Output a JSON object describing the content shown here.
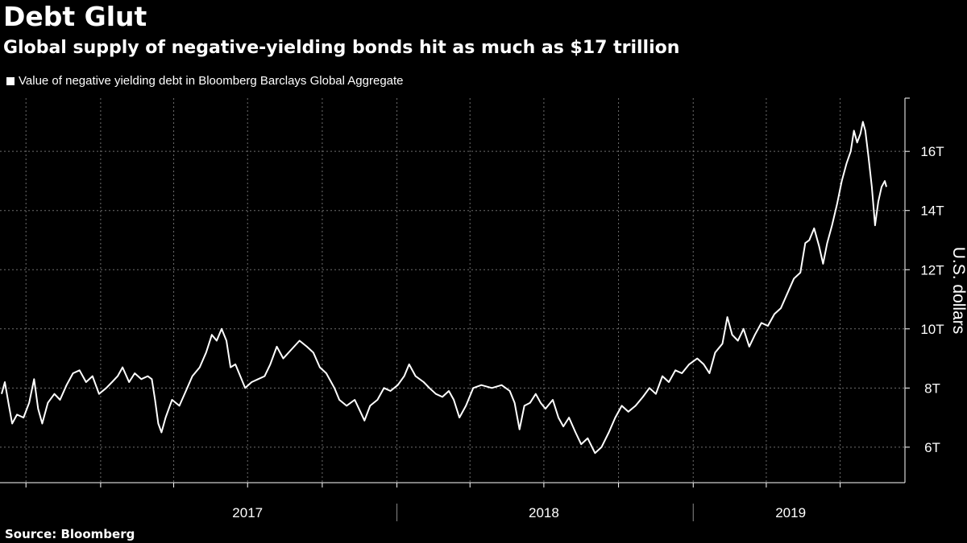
{
  "header": {
    "title": "Debt Glut",
    "subtitle": "Global supply of negative-yielding bonds hit as much as $17 trillion"
  },
  "legend": {
    "label": "Value of negative yielding debt in Bloomberg Barclays Global Aggregate"
  },
  "footer": {
    "source": "Source: Bloomberg"
  },
  "colors": {
    "background": "#000000",
    "line": "#ffffff",
    "grid": "#6e6e6e",
    "text": "#ffffff"
  },
  "chart_data": {
    "type": "line",
    "title": "Debt Glut",
    "subtitle": "Global supply of negative-yielding bonds hit as much as $17 trillion",
    "ylabel": "U.S. dollars",
    "xlabel": "",
    "y_unit": "trillion USD",
    "ylim": [
      4.8,
      17.8
    ],
    "xlim": [
      "2016-09-01",
      "2019-08-27"
    ],
    "grid": true,
    "legend_position": "top-left",
    "y_ticks": [
      {
        "value": 6,
        "label": "6T"
      },
      {
        "value": 8,
        "label": "8T"
      },
      {
        "value": 10,
        "label": "10T"
      },
      {
        "value": 12,
        "label": "12T"
      },
      {
        "value": 14,
        "label": "14T"
      },
      {
        "value": 16,
        "label": "16T"
      }
    ],
    "x_tick_labels": [
      {
        "date": "2017-07-01",
        "label": "2017"
      },
      {
        "date": "2018-07-01",
        "label": "2018"
      },
      {
        "date": "2019-05-01",
        "label": "2019"
      }
    ],
    "x_year_dividers": [
      "2018-01-01",
      "2019-01-01"
    ],
    "x_minor_ticks": [
      "2016-10-01",
      "2017-01-01",
      "2017-04-01",
      "2017-07-01",
      "2017-10-01",
      "2018-01-01",
      "2018-04-01",
      "2018-07-01",
      "2018-10-01",
      "2019-01-01",
      "2019-04-01",
      "2019-07-01"
    ],
    "series": [
      {
        "name": "Value of negative yielding debt in Bloomberg Barclays Global Aggregate",
        "points": [
          [
            "2016-09-01",
            7.8
          ],
          [
            "2016-09-05",
            8.2
          ],
          [
            "2016-09-10",
            7.4
          ],
          [
            "2016-09-14",
            6.8
          ],
          [
            "2016-09-20",
            7.1
          ],
          [
            "2016-09-28",
            7.0
          ],
          [
            "2016-10-05",
            7.5
          ],
          [
            "2016-10-11",
            8.3
          ],
          [
            "2016-10-16",
            7.3
          ],
          [
            "2016-10-21",
            6.8
          ],
          [
            "2016-10-28",
            7.5
          ],
          [
            "2016-11-05",
            7.8
          ],
          [
            "2016-11-12",
            7.6
          ],
          [
            "2016-11-20",
            8.1
          ],
          [
            "2016-11-28",
            8.5
          ],
          [
            "2016-12-06",
            8.6
          ],
          [
            "2016-12-14",
            8.2
          ],
          [
            "2016-12-22",
            8.4
          ],
          [
            "2016-12-30",
            7.8
          ],
          [
            "2017-01-08",
            8.0
          ],
          [
            "2017-01-15",
            8.2
          ],
          [
            "2017-01-22",
            8.4
          ],
          [
            "2017-01-28",
            8.7
          ],
          [
            "2017-02-05",
            8.2
          ],
          [
            "2017-02-12",
            8.5
          ],
          [
            "2017-02-20",
            8.3
          ],
          [
            "2017-02-28",
            8.4
          ],
          [
            "2017-03-05",
            8.3
          ],
          [
            "2017-03-09",
            7.6
          ],
          [
            "2017-03-13",
            6.8
          ],
          [
            "2017-03-17",
            6.5
          ],
          [
            "2017-03-22",
            7.0
          ],
          [
            "2017-03-30",
            7.6
          ],
          [
            "2017-04-08",
            7.4
          ],
          [
            "2017-04-16",
            7.9
          ],
          [
            "2017-04-24",
            8.4
          ],
          [
            "2017-05-03",
            8.7
          ],
          [
            "2017-05-11",
            9.2
          ],
          [
            "2017-05-18",
            9.8
          ],
          [
            "2017-05-24",
            9.6
          ],
          [
            "2017-05-30",
            10.0
          ],
          [
            "2017-06-05",
            9.6
          ],
          [
            "2017-06-10",
            8.7
          ],
          [
            "2017-06-16",
            8.8
          ],
          [
            "2017-06-22",
            8.4
          ],
          [
            "2017-06-28",
            8.0
          ],
          [
            "2017-07-06",
            8.2
          ],
          [
            "2017-07-14",
            8.3
          ],
          [
            "2017-07-22",
            8.4
          ],
          [
            "2017-07-29",
            8.8
          ],
          [
            "2017-08-06",
            9.4
          ],
          [
            "2017-08-14",
            9.0
          ],
          [
            "2017-08-24",
            9.3
          ],
          [
            "2017-09-03",
            9.6
          ],
          [
            "2017-09-12",
            9.4
          ],
          [
            "2017-09-20",
            9.2
          ],
          [
            "2017-09-28",
            8.7
          ],
          [
            "2017-10-06",
            8.5
          ],
          [
            "2017-10-16",
            8.0
          ],
          [
            "2017-10-22",
            7.6
          ],
          [
            "2017-10-31",
            7.4
          ],
          [
            "2017-11-10",
            7.6
          ],
          [
            "2017-11-17",
            7.2
          ],
          [
            "2017-11-22",
            6.9
          ],
          [
            "2017-11-29",
            7.4
          ],
          [
            "2017-12-08",
            7.6
          ],
          [
            "2017-12-16",
            8.0
          ],
          [
            "2017-12-24",
            7.9
          ],
          [
            "2018-01-02",
            8.1
          ],
          [
            "2018-01-10",
            8.4
          ],
          [
            "2018-01-16",
            8.8
          ],
          [
            "2018-01-24",
            8.4
          ],
          [
            "2018-02-03",
            8.2
          ],
          [
            "2018-02-10",
            8.0
          ],
          [
            "2018-02-18",
            7.8
          ],
          [
            "2018-02-26",
            7.7
          ],
          [
            "2018-03-06",
            7.9
          ],
          [
            "2018-03-12",
            7.6
          ],
          [
            "2018-03-19",
            7.0
          ],
          [
            "2018-03-27",
            7.4
          ],
          [
            "2018-04-05",
            8.0
          ],
          [
            "2018-04-15",
            8.1
          ],
          [
            "2018-04-28",
            8.0
          ],
          [
            "2018-05-10",
            8.1
          ],
          [
            "2018-05-20",
            7.9
          ],
          [
            "2018-05-26",
            7.5
          ],
          [
            "2018-06-01",
            6.6
          ],
          [
            "2018-06-07",
            7.4
          ],
          [
            "2018-06-14",
            7.5
          ],
          [
            "2018-06-21",
            7.8
          ],
          [
            "2018-06-27",
            7.5
          ],
          [
            "2018-07-03",
            7.3
          ],
          [
            "2018-07-12",
            7.6
          ],
          [
            "2018-07-19",
            7.0
          ],
          [
            "2018-07-25",
            6.7
          ],
          [
            "2018-08-01",
            7.0
          ],
          [
            "2018-08-09",
            6.5
          ],
          [
            "2018-08-16",
            6.1
          ],
          [
            "2018-08-24",
            6.3
          ],
          [
            "2018-09-02",
            5.8
          ],
          [
            "2018-09-10",
            6.0
          ],
          [
            "2018-09-19",
            6.5
          ],
          [
            "2018-09-27",
            7.0
          ],
          [
            "2018-10-05",
            7.4
          ],
          [
            "2018-10-13",
            7.2
          ],
          [
            "2018-10-22",
            7.4
          ],
          [
            "2018-10-31",
            7.7
          ],
          [
            "2018-11-08",
            8.0
          ],
          [
            "2018-11-16",
            7.8
          ],
          [
            "2018-11-24",
            8.4
          ],
          [
            "2018-12-02",
            8.2
          ],
          [
            "2018-12-10",
            8.6
          ],
          [
            "2018-12-18",
            8.5
          ],
          [
            "2018-12-27",
            8.8
          ],
          [
            "2019-01-06",
            9.0
          ],
          [
            "2019-01-14",
            8.8
          ],
          [
            "2019-01-21",
            8.5
          ],
          [
            "2019-01-28",
            9.2
          ],
          [
            "2019-02-06",
            9.5
          ],
          [
            "2019-02-12",
            10.4
          ],
          [
            "2019-02-18",
            9.8
          ],
          [
            "2019-02-25",
            9.6
          ],
          [
            "2019-03-04",
            10.0
          ],
          [
            "2019-03-11",
            9.4
          ],
          [
            "2019-03-18",
            9.8
          ],
          [
            "2019-03-26",
            10.2
          ],
          [
            "2019-04-03",
            10.1
          ],
          [
            "2019-04-11",
            10.5
          ],
          [
            "2019-04-19",
            10.7
          ],
          [
            "2019-04-27",
            11.2
          ],
          [
            "2019-05-05",
            11.7
          ],
          [
            "2019-05-13",
            11.9
          ],
          [
            "2019-05-19",
            12.9
          ],
          [
            "2019-05-24",
            13.0
          ],
          [
            "2019-05-30",
            13.4
          ],
          [
            "2019-06-05",
            12.8
          ],
          [
            "2019-06-10",
            12.2
          ],
          [
            "2019-06-15",
            12.9
          ],
          [
            "2019-06-21",
            13.5
          ],
          [
            "2019-06-27",
            14.2
          ],
          [
            "2019-07-03",
            15.0
          ],
          [
            "2019-07-09",
            15.6
          ],
          [
            "2019-07-14",
            16.0
          ],
          [
            "2019-07-18",
            16.7
          ],
          [
            "2019-07-22",
            16.3
          ],
          [
            "2019-07-26",
            16.6
          ],
          [
            "2019-07-29",
            17.0
          ],
          [
            "2019-08-01",
            16.7
          ],
          [
            "2019-08-05",
            15.8
          ],
          [
            "2019-08-09",
            14.8
          ],
          [
            "2019-08-13",
            13.5
          ],
          [
            "2019-08-17",
            14.3
          ],
          [
            "2019-08-21",
            14.8
          ],
          [
            "2019-08-25",
            15.0
          ],
          [
            "2019-08-27",
            14.8
          ]
        ]
      }
    ]
  }
}
